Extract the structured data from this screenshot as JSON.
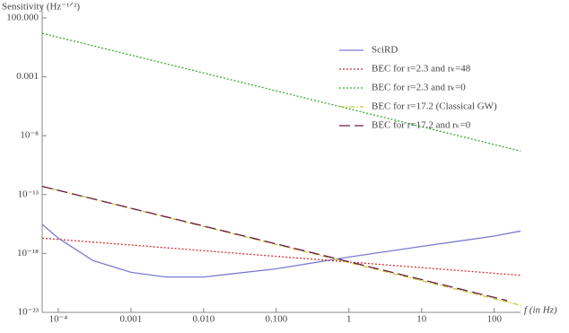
{
  "chart_data": {
    "type": "line",
    "y_label": "Sensitivity (Hz⁻¹ᐟ²)",
    "x_label": "f (in Hz)",
    "x_scale": "log",
    "y_scale": "log",
    "xlim": [
      6e-05,
      230
    ],
    "ylim": [
      1e-23,
      100
    ],
    "xticks": [
      {
        "value": 0.0001,
        "label": "10⁻⁴"
      },
      0.001,
      {
        "value": 0.01,
        "label": "0.010"
      },
      {
        "value": 0.1,
        "label": "0.100"
      },
      1,
      10,
      100
    ],
    "yticks": [
      {
        "value": 100,
        "label": "100.000"
      },
      0.001,
      {
        "value": 1e-08,
        "label": "10⁻⁸"
      },
      {
        "value": 1e-13,
        "label": "10⁻¹³"
      },
      {
        "value": 1e-18,
        "label": "10⁻¹⁸"
      },
      {
        "value": 1e-23,
        "label": "10⁻²³"
      }
    ],
    "legend": "upper right",
    "series": [
      {
        "name": "SciRD",
        "color": "#7b7bd0",
        "dash": "solid",
        "x": [
          6e-05,
          0.0001,
          0.0003,
          0.001,
          0.003,
          0.01,
          0.1,
          1,
          10,
          100,
          230
        ],
        "values": [
          3e-16,
          2e-17,
          2.5e-19,
          2.5e-20,
          1e-20,
          1e-20,
          5e-20,
          5e-19,
          4e-18,
          3e-17,
          8e-17
        ]
      },
      {
        "name": "BEC for r=2.3 and rₖ=48",
        "color": "#cc3333",
        "dash": "dotted",
        "x": [
          6e-05,
          230
        ],
        "values": [
          2e-17,
          1.4e-20
        ]
      },
      {
        "name": "BEC for r=2.3 and rₖ=0",
        "color": "#33aa33",
        "dash": "dotted",
        "x": [
          6e-05,
          230
        ],
        "values": [
          5,
          5e-10
        ]
      },
      {
        "name": "BEC for r=17.2 (Classical GW)",
        "color": "#c8c832",
        "dash": "dashdot",
        "x": [
          6e-05,
          230
        ],
        "values": [
          5e-13,
          4e-23
        ]
      },
      {
        "name": "BEC for r=17.2 and rₖ=0",
        "color": "#6a1b4d",
        "dash": "longdash",
        "x": [
          6e-05,
          150
        ],
        "values": [
          5e-13,
          1e-22
        ]
      }
    ]
  }
}
